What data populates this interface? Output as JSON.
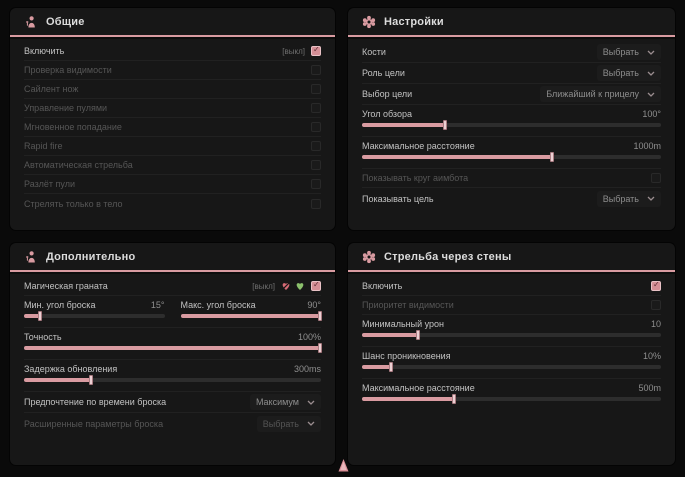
{
  "theme": {
    "accent": "#d99ba1",
    "checkbox_checked": "#d58f96",
    "panel_bg": "#171717",
    "page_bg": "#0a0a0a"
  },
  "cursor": {
    "name": "mouse-cursor",
    "color": "#d98f96"
  },
  "panels": [
    {
      "id": "general",
      "title": "Общие",
      "icon": "person-icon",
      "rows": [
        {
          "type": "toggle",
          "label": "Включить",
          "hotkey": "[выкл]",
          "checked": true,
          "dim": false
        },
        {
          "type": "toggle",
          "label": "Проверка видимости",
          "checked": false,
          "dim": true
        },
        {
          "type": "toggle",
          "label": "Сайлент нож",
          "checked": false,
          "dim": true
        },
        {
          "type": "toggle",
          "label": "Управление пулями",
          "checked": false,
          "dim": true
        },
        {
          "type": "toggle",
          "label": "Мгновенное попадание",
          "checked": false,
          "dim": true
        },
        {
          "type": "toggle",
          "label": "Rapid fire",
          "checked": false,
          "dim": true
        },
        {
          "type": "toggle",
          "label": "Автоматическая стрельба",
          "checked": false,
          "dim": true
        },
        {
          "type": "toggle",
          "label": "Разлёт пули",
          "checked": false,
          "dim": true
        },
        {
          "type": "toggle",
          "label": "Стрелять только в тело",
          "checked": false,
          "dim": true
        }
      ]
    },
    {
      "id": "settings",
      "title": "Настройки",
      "icon": "gear-icon",
      "rows": [
        {
          "type": "dropdown",
          "label": "Кости",
          "value": "Выбрать",
          "dim": false
        },
        {
          "type": "dropdown",
          "label": "Роль цели",
          "value": "Выбрать",
          "dim": false
        },
        {
          "type": "dropdown",
          "label": "Выбор цели",
          "value": "Ближайший к прицелу",
          "dim": false
        },
        {
          "type": "slider",
          "label": "Угол обзора",
          "value": "100°",
          "fill": 28
        },
        {
          "type": "slider",
          "label": "Максимальное расстояние",
          "value": "1000m",
          "fill": 64
        },
        {
          "type": "toggle",
          "label": "Показывать круг аимбота",
          "checked": false,
          "dim": true
        },
        {
          "type": "dropdown",
          "label": "Показывать цель",
          "value": "Выбрать",
          "dim": false
        }
      ]
    },
    {
      "id": "additional",
      "title": "Дополнительно",
      "icon": "person-icon",
      "rows": [
        {
          "type": "toggle",
          "label": "Магическая граната",
          "hotkey": "[выкл]",
          "icons": [
            "heart-crossed-icon",
            "heart-icon"
          ],
          "checked": true,
          "dim": false
        },
        {
          "type": "slider-pair",
          "items": [
            {
              "label": "Мин. угол броска",
              "value": "15°",
              "fill": 12
            },
            {
              "label": "Макс. угол броска",
              "value": "90°",
              "fill": 100
            }
          ]
        },
        {
          "type": "slider",
          "label": "Точность",
          "value": "100%",
          "fill": 100
        },
        {
          "type": "slider",
          "label": "Задержка обновления",
          "value": "300ms",
          "fill": 23
        },
        {
          "type": "dropdown",
          "label": "Предпочтение по времени броска",
          "value": "Максимум",
          "dim": false
        },
        {
          "type": "dropdown",
          "label": "Расширенные параметры броска",
          "value": "Выбрать",
          "dim": true
        }
      ]
    },
    {
      "id": "wallbang",
      "title": "Стрельба через стены",
      "icon": "gear-icon",
      "rows": [
        {
          "type": "toggle",
          "label": "Включить",
          "checked": true,
          "dim": false
        },
        {
          "type": "toggle",
          "label": "Приоритет видимости",
          "checked": false,
          "dim": true
        },
        {
          "type": "slider",
          "label": "Минимальный урон",
          "value": "10",
          "fill": 19
        },
        {
          "type": "slider",
          "label": "Шанс проникновения",
          "value": "10%",
          "fill": 10
        },
        {
          "type": "slider",
          "label": "Максимальное расстояние",
          "value": "500m",
          "fill": 31
        }
      ]
    }
  ]
}
